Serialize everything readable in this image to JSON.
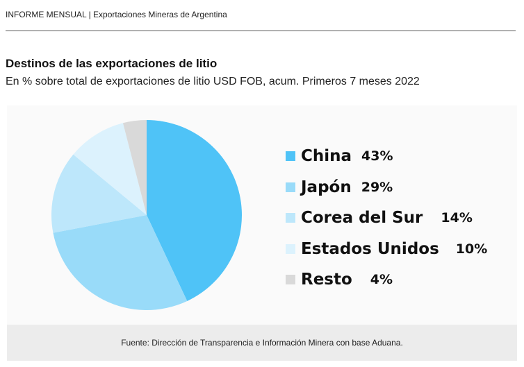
{
  "header": "INFORME MENSUAL | Exportaciones Mineras de Argentina",
  "chart_data": {
    "type": "pie",
    "title": "Destinos de las exportaciones de litio",
    "subtitle": "En % sobre total de exportaciones de litio USD FOB, acum. Primeros 7 meses 2022",
    "categories": [
      "China",
      "Japón",
      "Corea del Sur",
      "Estados Unidos",
      "Resto"
    ],
    "values": [
      43,
      29,
      14,
      10,
      4
    ],
    "labels": [
      "43%",
      "29%",
      "14%",
      "10%",
      "4%"
    ],
    "colors": [
      "#4fc3f7",
      "#99dbf9",
      "#bde7fb",
      "#dcf2fd",
      "#d9d9d9"
    ],
    "legend": "right"
  },
  "source": "Fuente: Dirección de Transparencia e Información Minera con base Aduana."
}
